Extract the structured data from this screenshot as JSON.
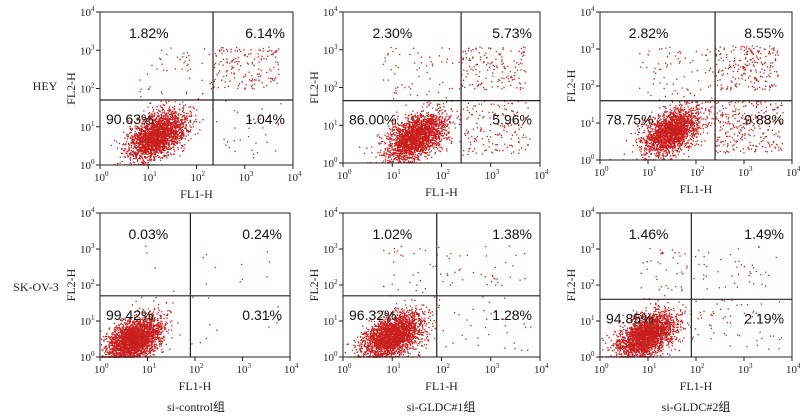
{
  "row_labels": [
    "HEY",
    "SK-OV-3"
  ],
  "column_labels": [
    "si-control组",
    "si-GLDC#1组",
    "si-GLDC#2组"
  ],
  "point_color": "#c8201f",
  "chart_data": [
    {
      "type": "scatter",
      "row": "HEY",
      "xlabel": "FL1-H",
      "ylabel": "FL2-H",
      "xscale": "log",
      "yscale": "log",
      "xlim": [
        1,
        10000
      ],
      "ylim": [
        1,
        10000
      ],
      "tick_labels": [
        "10^0",
        "10^1",
        "10^2",
        "10^3",
        "10^4"
      ],
      "gate": {
        "x": 220,
        "y": 50
      },
      "quadrants": {
        "upper_left": "1.82%",
        "upper_right": "6.14%",
        "lower_left": "90.63%",
        "lower_right": "1.04%"
      },
      "main_population_center": {
        "x": 15,
        "y": 6
      }
    },
    {
      "type": "scatter",
      "row": "HEY",
      "xlabel": "FL1-H",
      "ylabel": "FL2-H",
      "xscale": "log",
      "yscale": "log",
      "xlim": [
        1,
        10000
      ],
      "ylim": [
        1,
        10000
      ],
      "tick_labels": [
        "10^0",
        "10^1",
        "10^2",
        "10^3",
        "10^4"
      ],
      "gate": {
        "x": 250,
        "y": 45
      },
      "quadrants": {
        "upper_left": "2.30%",
        "upper_right": "5.73%",
        "lower_left": "86.00%",
        "lower_right": "5.96%"
      },
      "main_population_center": {
        "x": 30,
        "y": 5
      }
    },
    {
      "type": "scatter",
      "row": "HEY",
      "xlabel": "FL1-H",
      "ylabel": "FL2-H",
      "xscale": "log",
      "yscale": "log",
      "xlim": [
        1,
        10000
      ],
      "ylim": [
        1,
        10000
      ],
      "tick_labels": [
        "10^0",
        "10^1",
        "10^2",
        "10^3",
        "10^4"
      ],
      "gate": {
        "x": 250,
        "y": 40
      },
      "quadrants": {
        "upper_left": "2.82%",
        "upper_right": "8.55%",
        "lower_left": "78.75%",
        "lower_right": "9.88%"
      },
      "main_population_center": {
        "x": 30,
        "y": 6
      }
    },
    {
      "type": "scatter",
      "row": "SK-OV-3",
      "xlabel": "FL1-H",
      "ylabel": "FL2-H",
      "xscale": "log",
      "yscale": "log",
      "xlim": [
        1,
        10000
      ],
      "ylim": [
        1,
        10000
      ],
      "tick_labels": [
        "10^0",
        "10^1",
        "10^2",
        "10^3",
        "10^4"
      ],
      "gate": {
        "x": 80,
        "y": 50
      },
      "quadrants": {
        "upper_left": "0.03%",
        "upper_right": "0.24%",
        "lower_left": "99.42%",
        "lower_right": "0.31%"
      },
      "main_population_center": {
        "x": 5,
        "y": 3
      }
    },
    {
      "type": "scatter",
      "row": "SK-OV-3",
      "xlabel": "FL1-H",
      "ylabel": "FL2-H",
      "xscale": "log",
      "yscale": "log",
      "xlim": [
        1,
        10000
      ],
      "ylim": [
        1,
        10000
      ],
      "tick_labels": [
        "10^0",
        "10^1",
        "10^2",
        "10^3",
        "10^4"
      ],
      "gate": {
        "x": 80,
        "y": 50
      },
      "quadrants": {
        "upper_left": "1.02%",
        "upper_right": "1.38%",
        "lower_left": "96.32%",
        "lower_right": "1.28%"
      },
      "main_population_center": {
        "x": 10,
        "y": 4
      }
    },
    {
      "type": "scatter",
      "row": "SK-OV-3",
      "xlabel": "FL1-H",
      "ylabel": "FL2-H",
      "xscale": "log",
      "yscale": "log",
      "xlim": [
        1,
        10000
      ],
      "ylim": [
        1,
        10000
      ],
      "tick_labels": [
        "10^0",
        "10^1",
        "10^2",
        "10^3",
        "10^4"
      ],
      "gate": {
        "x": 80,
        "y": 40
      },
      "quadrants": {
        "upper_left": "1.46%",
        "upper_right": "1.49%",
        "lower_left": "94.85%",
        "lower_right": "2.19%"
      },
      "main_population_center": {
        "x": 9,
        "y": 4
      }
    }
  ]
}
